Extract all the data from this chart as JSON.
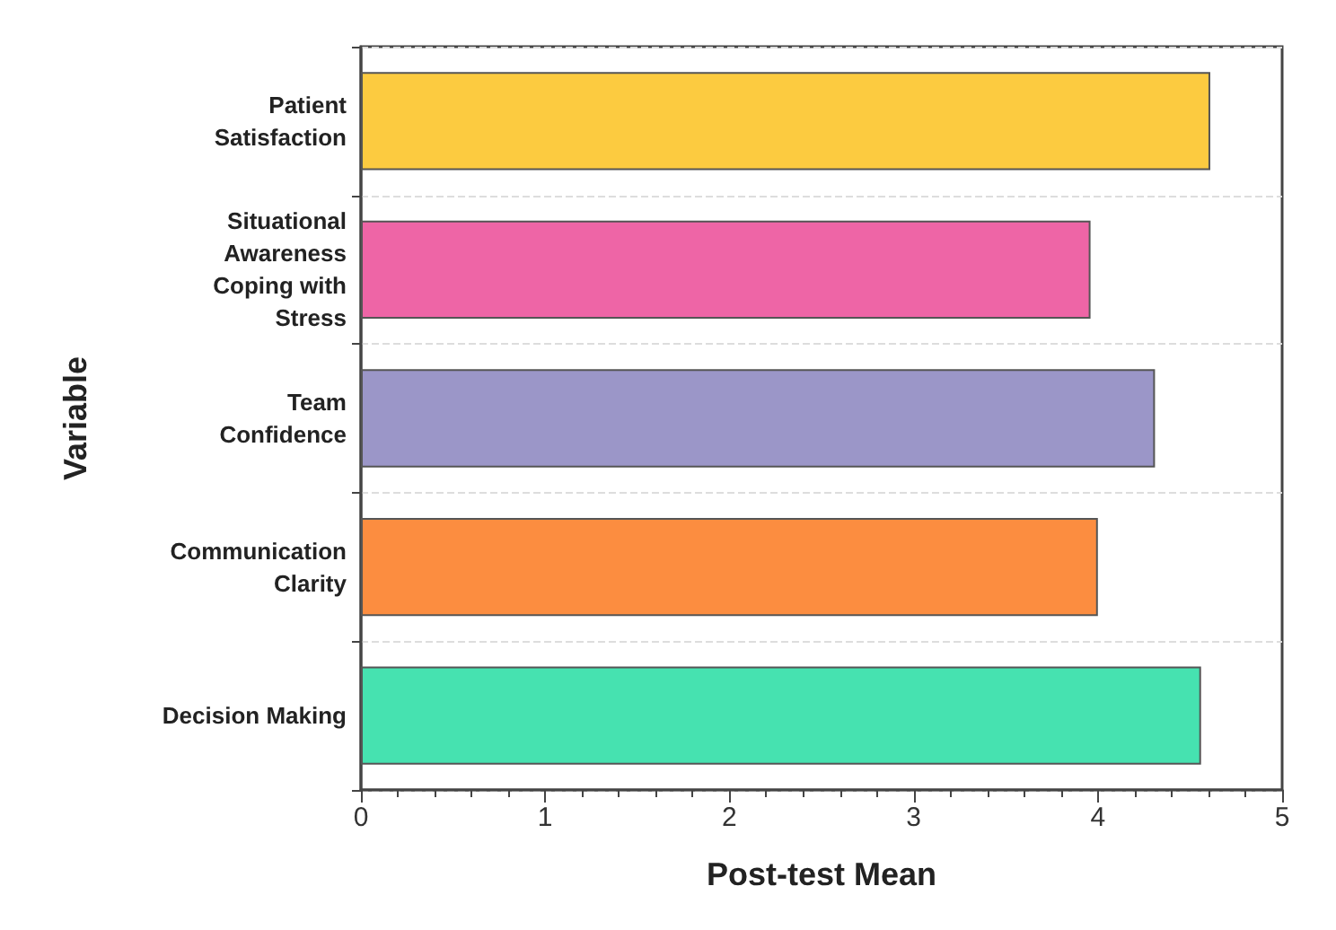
{
  "chart_data": {
    "type": "bar",
    "orientation": "horizontal",
    "xlabel": "Post-test Mean",
    "ylabel": "Variable",
    "categories": [
      "Patient\nSatisfaction",
      "Situational\nAwareness\nCoping with\nStress",
      "Team\nConfidence",
      "Communication\nClarity",
      "Decision Making"
    ],
    "values": [
      4.61,
      3.96,
      4.31,
      4.0,
      4.56
    ],
    "colors": [
      "#fccb40",
      "#ee65a6",
      "#9b96c8",
      "#fc8d40",
      "#46e2b0"
    ],
    "xlim": [
      0,
      5
    ],
    "xticks": [
      0,
      1,
      2,
      3,
      4,
      5
    ],
    "grid": "y"
  }
}
